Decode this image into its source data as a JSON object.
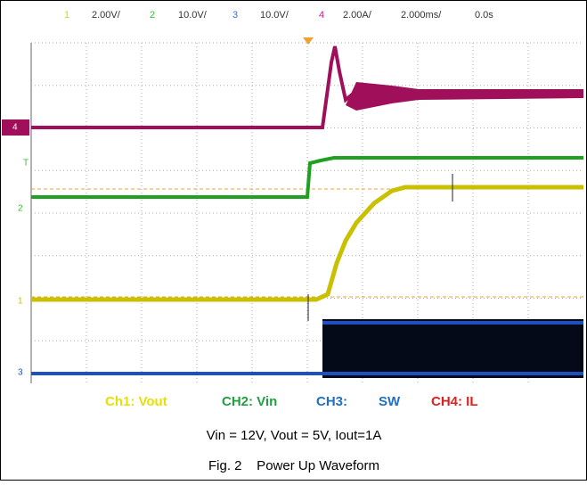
{
  "header": {
    "ch1_index": "1",
    "ch1_scale": "2.00V/",
    "ch2_index": "2",
    "ch2_scale": "10.0V/",
    "ch3_index": "3",
    "ch3_scale": "10.0V/",
    "ch4_index": "4",
    "ch4_scale": "2.00A/",
    "timebase": "2.000ms/",
    "delay": "0.0s"
  },
  "markers": {
    "ch4": "4",
    "trigger": "T",
    "ch2": "2",
    "ch1": "1",
    "ch3": "3"
  },
  "legend": {
    "ch1": "Ch1: Vout",
    "ch2": "CH2: Vin",
    "ch3": "CH3:",
    "sw": "SW",
    "ch4": "CH4: IL"
  },
  "caption": {
    "conditions": "Vin = 12V, Vout = 5V, Iout=1A",
    "figure": "Fig. 2    Power Up Waveform"
  }
}
